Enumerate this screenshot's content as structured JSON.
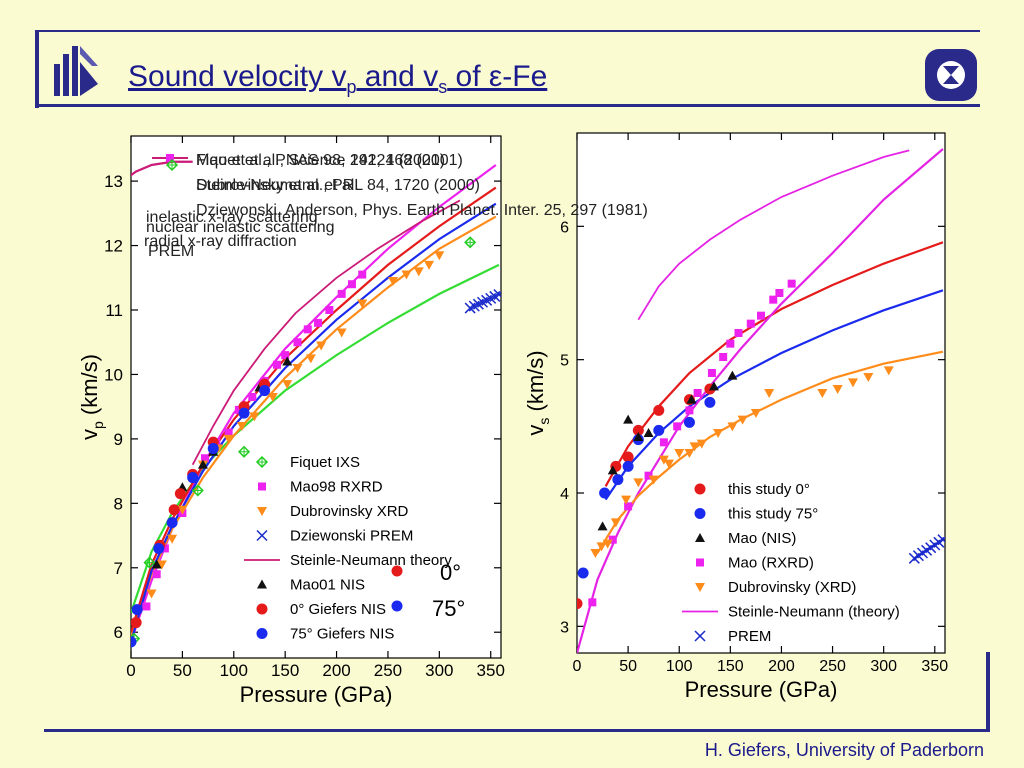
{
  "slide": {
    "title_prefix": "Sound velocity v",
    "title_sub1": "p",
    "title_mid": " and v",
    "title_sub2": "s",
    "title_end": " of ε-Fe",
    "footer": "H. Giefers, University of Paderborn"
  },
  "chart_data": [
    {
      "type": "scatter",
      "xlabel": "Pressure (GPa)",
      "ylabel": "v",
      "ylabel_sub": "p",
      "ylabel_unit": " (km/s)",
      "xlim": [
        0,
        360
      ],
      "ylim": [
        5.6,
        13.7
      ],
      "xticks": [
        0,
        50,
        100,
        150,
        200,
        250,
        300,
        350
      ],
      "yticks": [
        6,
        7,
        8,
        9,
        10,
        11,
        12,
        13
      ],
      "grid": false,
      "legend_position": "bottom-right",
      "overlapping_text": [
        "Fiquet et al., Science 291, 468 (2001)",
        "Mao et al., PNAS 98, 14221 (2001)",
        "Dubrovinsky et al., PRL 84, 1720 (2000)",
        "Steinle-Neumann et al.",
        "Dziewonski, Anderson, Phys. Earth Planet. Inter. 25, 297 (1981)",
        "inelastic x-ray scattering",
        "nuclear inelastic scattering",
        "radial x-ray diffraction",
        "PREM"
      ],
      "annotations": [
        "0°",
        "75°"
      ],
      "series": [
        {
          "name": "Fiquet IXS",
          "marker": "diamond-open",
          "color": "#22cc22",
          "x": [
            3,
            18,
            28,
            65,
            110,
            330
          ],
          "y": [
            5.9,
            7.08,
            7.33,
            8.2,
            8.8,
            12.05
          ]
        },
        {
          "name": "Mao98 RXRD",
          "marker": "square",
          "color": "#ee22ee",
          "x": [
            15,
            25,
            33,
            50,
            60,
            72,
            83,
            95,
            105,
            118,
            130,
            142,
            150,
            162,
            172,
            182,
            193,
            205,
            215,
            225
          ],
          "y": [
            6.4,
            6.9,
            7.3,
            7.85,
            8.4,
            8.7,
            8.95,
            9.1,
            9.45,
            9.65,
            9.9,
            10.15,
            10.3,
            10.5,
            10.7,
            10.8,
            11.0,
            11.25,
            11.4,
            11.55
          ]
        },
        {
          "name": "Dubrovinsky XRD",
          "marker": "triangle-down",
          "color": "#ff8c1a",
          "x": [
            20,
            30,
            40,
            50,
            70,
            85,
            95,
            108,
            120,
            138,
            152,
            162,
            175,
            185,
            205,
            225,
            255,
            268,
            280,
            290,
            300
          ],
          "y": [
            6.6,
            7.05,
            7.45,
            7.9,
            8.6,
            8.85,
            9.0,
            9.2,
            9.35,
            9.65,
            9.85,
            10.1,
            10.25,
            10.45,
            10.65,
            11.1,
            11.45,
            11.55,
            11.6,
            11.7,
            11.85
          ]
        },
        {
          "name": "Dziewonski PREM",
          "marker": "x",
          "color": "#1a2acc",
          "x": [
            330,
            334,
            338,
            342,
            346,
            350,
            354,
            358
          ],
          "y": [
            11.03,
            11.06,
            11.09,
            11.12,
            11.15,
            11.18,
            11.21,
            11.24
          ]
        },
        {
          "name": "Steinle-Neumann theory",
          "marker": "line",
          "color": "#cc1a77",
          "x": [
            60,
            80,
            100,
            130,
            160,
            200,
            240,
            280,
            320
          ],
          "y": [
            8.6,
            9.2,
            9.75,
            10.4,
            10.95,
            11.5,
            11.95,
            12.35,
            12.7
          ]
        },
        {
          "name": "Mao01 NIS",
          "marker": "triangle-up",
          "color": "#111111",
          "x": [
            25,
            50,
            60,
            70,
            80,
            125,
            152
          ],
          "y": [
            7.05,
            8.25,
            8.45,
            8.6,
            8.8,
            9.8,
            10.2
          ]
        },
        {
          "name": "0° Giefers NIS",
          "marker": "circle",
          "color": "#e51a1a",
          "x": [
            5,
            28,
            42,
            48,
            60,
            80,
            110,
            130
          ],
          "y": [
            6.15,
            7.35,
            7.9,
            8.15,
            8.45,
            8.95,
            9.5,
            9.85
          ]
        },
        {
          "name": "75° Giefers NIS",
          "marker": "circle",
          "color": "#1a2aee",
          "x": [
            0,
            6,
            27,
            40,
            60,
            80,
            110,
            130
          ],
          "y": [
            5.85,
            6.35,
            7.3,
            7.7,
            8.4,
            8.85,
            9.4,
            9.75
          ]
        }
      ],
      "curves": [
        {
          "name": "Fiquet IXS",
          "color": "#33dd33",
          "x": [
            0,
            20,
            40,
            70,
            100,
            150,
            200,
            250,
            300,
            358
          ],
          "y": [
            6.3,
            7.25,
            7.85,
            8.55,
            9.05,
            9.75,
            10.3,
            10.8,
            11.25,
            11.7
          ]
        },
        {
          "name": "Mao98 RXRD",
          "color": "#ee22ee",
          "x": [
            0,
            20,
            40,
            70,
            100,
            150,
            200,
            250,
            300,
            355
          ],
          "y": [
            5.85,
            6.8,
            7.6,
            8.6,
            9.4,
            10.4,
            11.2,
            11.95,
            12.6,
            13.25
          ]
        },
        {
          "name": "Dubrovinsky XRD",
          "color": "#ff8c1a",
          "x": [
            0,
            20,
            40,
            70,
            100,
            150,
            200,
            250,
            300,
            355
          ],
          "y": [
            5.95,
            6.9,
            7.6,
            8.4,
            9.05,
            9.95,
            10.7,
            11.35,
            11.95,
            12.45
          ]
        },
        {
          "name": "0° Giefers NIS",
          "color": "#e51a1a",
          "x": [
            0,
            20,
            40,
            70,
            100,
            150,
            200,
            250,
            300,
            355
          ],
          "y": [
            6.0,
            7.05,
            7.75,
            8.6,
            9.3,
            10.25,
            11.0,
            11.7,
            12.3,
            12.9
          ]
        },
        {
          "name": "75° Giefers NIS",
          "color": "#1a2aee",
          "x": [
            0,
            20,
            40,
            70,
            100,
            150,
            200,
            250,
            300,
            355
          ],
          "y": [
            5.85,
            6.95,
            7.65,
            8.5,
            9.2,
            10.1,
            10.85,
            11.5,
            12.1,
            12.65
          ]
        },
        {
          "name": "Steinle-Neumann theory",
          "color": "#cc1a77",
          "x": [
            -8,
            5,
            20,
            40,
            60
          ],
          "y": [
            13.0,
            13.15,
            13.25,
            13.3,
            13.3
          ]
        }
      ]
    },
    {
      "type": "scatter",
      "xlabel": "Pressure (GPa)",
      "ylabel": "v",
      "ylabel_sub": "s",
      "ylabel_unit": " (km/s)",
      "xlim": [
        0,
        360
      ],
      "ylim": [
        2.8,
        6.7
      ],
      "xticks": [
        0,
        50,
        100,
        150,
        200,
        250,
        300,
        350
      ],
      "yticks": [
        3,
        4,
        5,
        6
      ],
      "grid": false,
      "legend_position": "bottom-right",
      "series": [
        {
          "name": "this study 0°",
          "marker": "circle",
          "color": "#e51a1a",
          "x": [
            0,
            38,
            50,
            60,
            80,
            110,
            130
          ],
          "y": [
            3.17,
            4.2,
            4.27,
            4.47,
            4.62,
            4.7,
            4.78
          ]
        },
        {
          "name": "this study 75°",
          "marker": "circle",
          "color": "#1a2aee",
          "x": [
            6,
            27,
            40,
            50,
            60,
            80,
            110,
            130
          ],
          "y": [
            3.4,
            4.0,
            4.1,
            4.2,
            4.4,
            4.47,
            4.53,
            4.68
          ]
        },
        {
          "name": "Mao (NIS)",
          "marker": "triangle-up",
          "color": "#111111",
          "x": [
            25,
            35,
            50,
            60,
            70,
            112,
            134,
            152
          ],
          "y": [
            3.75,
            4.17,
            4.55,
            4.42,
            4.45,
            4.7,
            4.8,
            4.88
          ]
        },
        {
          "name": "Mao (RXRD)",
          "marker": "square",
          "color": "#ee22ee",
          "x": [
            15,
            35,
            50,
            70,
            85,
            98,
            110,
            118,
            132,
            143,
            150,
            158,
            170,
            180,
            192,
            198,
            210
          ],
          "y": [
            3.18,
            3.65,
            3.9,
            4.13,
            4.38,
            4.5,
            4.62,
            4.75,
            4.9,
            5.02,
            5.12,
            5.2,
            5.27,
            5.33,
            5.45,
            5.5,
            5.57
          ]
        },
        {
          "name": "Dubrovinsky (XRD)",
          "marker": "triangle-down",
          "color": "#ff8c1a",
          "x": [
            18,
            24,
            30,
            38,
            48,
            60,
            75,
            85,
            90,
            100,
            110,
            115,
            122,
            138,
            152,
            162,
            175,
            188,
            240,
            255,
            270,
            285,
            305
          ],
          "y": [
            3.55,
            3.6,
            3.62,
            3.78,
            3.95,
            4.08,
            4.1,
            4.25,
            4.22,
            4.3,
            4.3,
            4.35,
            4.37,
            4.45,
            4.5,
            4.55,
            4.6,
            4.75,
            4.75,
            4.78,
            4.83,
            4.87,
            4.92
          ]
        },
        {
          "name": "Steinle-Neumann (theory)",
          "marker": "line",
          "color": "#e523e5",
          "x": [
            60,
            80,
            100,
            130,
            160,
            200,
            250,
            300,
            325
          ],
          "y": [
            5.3,
            5.55,
            5.72,
            5.9,
            6.05,
            6.22,
            6.38,
            6.52,
            6.57
          ]
        },
        {
          "name": "PREM",
          "marker": "x",
          "color": "#1a2acc",
          "x": [
            330,
            334,
            338,
            342,
            346,
            350,
            354,
            358
          ],
          "y": [
            3.51,
            3.53,
            3.55,
            3.57,
            3.59,
            3.61,
            3.63,
            3.65
          ]
        }
      ],
      "curves": [
        {
          "name": "this study 0°",
          "color": "#e51a1a",
          "x": [
            28,
            50,
            80,
            110,
            150,
            200,
            250,
            300,
            358
          ],
          "y": [
            4.05,
            4.35,
            4.65,
            4.9,
            5.15,
            5.38,
            5.56,
            5.72,
            5.88
          ]
        },
        {
          "name": "this study 75°",
          "color": "#1a2aee",
          "x": [
            28,
            50,
            80,
            110,
            150,
            200,
            250,
            300,
            358
          ],
          "y": [
            3.95,
            4.2,
            4.45,
            4.65,
            4.85,
            5.05,
            5.22,
            5.37,
            5.52
          ]
        },
        {
          "name": "Mao (RXRD)",
          "color": "#e523e5",
          "x": [
            0,
            20,
            40,
            60,
            80,
            100,
            130,
            160,
            200,
            250,
            300,
            358
          ],
          "y": [
            2.8,
            3.35,
            3.7,
            4.0,
            4.25,
            4.5,
            4.8,
            5.08,
            5.42,
            5.8,
            6.2,
            6.58
          ]
        },
        {
          "name": "Dubrovinsky (XRD)",
          "color": "#ff8c1a",
          "x": [
            20,
            40,
            60,
            80,
            100,
            130,
            160,
            200,
            250,
            300,
            358
          ],
          "y": [
            3.55,
            3.8,
            3.98,
            4.12,
            4.25,
            4.42,
            4.55,
            4.7,
            4.86,
            4.97,
            5.06
          ]
        }
      ]
    }
  ],
  "overlay_labels": [
    "0°",
    "75°"
  ]
}
